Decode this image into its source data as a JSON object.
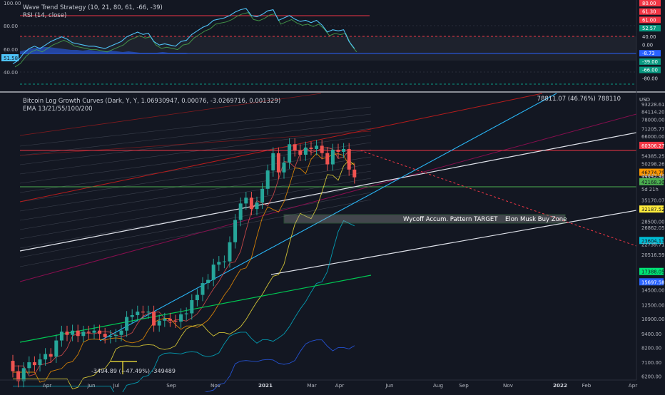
{
  "upper_panel": {
    "legend": [
      "Wave Trend Strategy (10, 21, 80, 61, -66, -39)",
      "RSI (14, close)"
    ],
    "left_axis": [
      "100.00",
      "80.00",
      "60.00",
      "40.00"
    ],
    "rsi_badge": "51.58",
    "right_tags": [
      {
        "text": "80.00",
        "color": "#f23645"
      },
      {
        "text": "61.30",
        "color": "#f23645"
      },
      {
        "text": "61.00",
        "color": "#f23645"
      },
      {
        "text": "52.57",
        "color": "#089981"
      },
      {
        "text": "40.00",
        "color": "#131722"
      },
      {
        "text": "0.00",
        "color": "#131722"
      },
      {
        "text": "-8.73",
        "color": "#2962ff"
      },
      {
        "text": "-39.00",
        "color": "#089981"
      },
      {
        "text": "-66.00",
        "color": "#089981"
      },
      {
        "text": "-80.00",
        "color": "#131722"
      }
    ]
  },
  "main_panel": {
    "legend": [
      "Bitcoin Log Growth Curves (Dark, Y, Y, 1.06930947, 0.00076, -3.0269716, 0.001329)",
      "EMA 13/21/55/100/200"
    ],
    "ohlc_readout": "78811.07 (46.76%) 788110",
    "currency": "USD",
    "zone_labels": [
      "Wycoff Accum. Pattern TARGET",
      "Elon Musk Buy Zone"
    ],
    "measure_label": "-3494.89 (−47.49%) -349489",
    "countdown": "5d 21h",
    "price_axis": [
      {
        "text": "93228.61",
        "price": 93228.61,
        "tag": "plain"
      },
      {
        "text": "84114.20",
        "price": 84114.2,
        "tag": "plain"
      },
      {
        "text": "78000.00",
        "price": 78000.0,
        "tag": "plain"
      },
      {
        "text": "71205.77",
        "price": 71205.77,
        "tag": "plain"
      },
      {
        "text": "66000.00",
        "price": 66000.0,
        "tag": "plain"
      },
      {
        "text": "60306.27",
        "price": 60306.27,
        "tag": "#f23645"
      },
      {
        "text": "54385.25",
        "price": 54385.25,
        "tag": "plain"
      },
      {
        "text": "50298.26",
        "price": 50298.26,
        "tag": "plain"
      },
      {
        "text": "46274.79",
        "price": 46274.79,
        "tag": "#ff9800"
      },
      {
        "text": "44843.48",
        "price": 44843.48,
        "tag": "plain"
      },
      {
        "text": "43734.80",
        "price": 43734.8,
        "tag": "plain"
      },
      {
        "text": "42168.30",
        "price": 42168.3,
        "tag": "#4caf50"
      },
      {
        "text": "35170.07",
        "price": 35170.07,
        "tag": "plain"
      },
      {
        "text": "32187.52",
        "price": 32187.52,
        "tag": "#ffeb3b"
      },
      {
        "text": "28500.00",
        "price": 28500.0,
        "tag": "plain"
      },
      {
        "text": "26862.05",
        "price": 26862.05,
        "tag": "plain"
      },
      {
        "text": "23604.13",
        "price": 23604.13,
        "tag": "#00bcd4"
      },
      {
        "text": "22739.71",
        "price": 22739.71,
        "tag": "plain"
      },
      {
        "text": "20516.59",
        "price": 20516.59,
        "tag": "plain"
      },
      {
        "text": "17388.05",
        "price": 17388.05,
        "tag": "#00e676"
      },
      {
        "text": "15697.58",
        "price": 15697.58,
        "tag": "#2962ff"
      },
      {
        "text": "14500.00",
        "price": 14500.0,
        "tag": "plain"
      },
      {
        "text": "12500.00",
        "price": 12500.0,
        "tag": "plain"
      },
      {
        "text": "10900.00",
        "price": 10900.0,
        "tag": "plain"
      },
      {
        "text": "9400.00",
        "price": 9400.0,
        "tag": "plain"
      },
      {
        "text": "8200.00",
        "price": 8200.0,
        "tag": "plain"
      },
      {
        "text": "7100.00",
        "price": 7100.0,
        "tag": "plain"
      },
      {
        "text": "6200.00",
        "price": 6200.0,
        "tag": "plain"
      }
    ],
    "time_axis": [
      "Apr",
      "Jun",
      "Jul",
      "Sep",
      "Nov",
      "2021",
      "Mar",
      "Apr",
      "Jun",
      "Aug",
      "Sep",
      "Nov",
      "2022",
      "Feb",
      "Apr"
    ]
  },
  "chart_data": {
    "type": "candlestick",
    "title": "Bitcoin Log Growth Curves (Dark, Y, Y, 1.06930947, 0.00076, -3.0269716, 0.001329)",
    "xlabel": "",
    "ylabel": "USD",
    "log_scale": true,
    "ylim": [
      6000,
      100000
    ],
    "x_start": "2020-03",
    "x_end": "2022-04",
    "colors": {
      "up": "#26a69a",
      "down": "#ef5350",
      "background": "#131722"
    },
    "candles_weekly": [
      [
        7200,
        6500
      ],
      [
        6500,
        5900
      ],
      [
        5900,
        6700
      ],
      [
        6700,
        7100
      ],
      [
        7100,
        6900
      ],
      [
        6900,
        7300
      ],
      [
        7300,
        7700
      ],
      [
        7700,
        7500
      ],
      [
        7500,
        8800
      ],
      [
        8800,
        9600
      ],
      [
        9600,
        9300
      ],
      [
        9300,
        9700
      ],
      [
        9700,
        9200
      ],
      [
        9200,
        9600
      ],
      [
        9600,
        9500
      ],
      [
        9500,
        9700
      ],
      [
        9700,
        9400
      ],
      [
        9400,
        9100
      ],
      [
        9100,
        9200
      ],
      [
        9200,
        9300
      ],
      [
        9300,
        9700
      ],
      [
        9700,
        11100
      ],
      [
        11100,
        11300
      ],
      [
        11300,
        11700
      ],
      [
        11700,
        11600
      ],
      [
        11600,
        11700
      ],
      [
        11700,
        10200
      ],
      [
        10200,
        10700
      ],
      [
        10700,
        10900
      ],
      [
        10900,
        10700
      ],
      [
        10700,
        10600
      ],
      [
        10600,
        11400
      ],
      [
        11400,
        11500
      ],
      [
        11500,
        13100
      ],
      [
        13100,
        13800
      ],
      [
        13800,
        15500
      ],
      [
        15500,
        16000
      ],
      [
        16000,
        18600
      ],
      [
        18600,
        19100
      ],
      [
        19100,
        19200
      ],
      [
        19200,
        23200
      ],
      [
        23200,
        28900
      ],
      [
        28900,
        34000
      ],
      [
        34000,
        36000
      ],
      [
        36000,
        32200
      ],
      [
        32200,
        34300
      ],
      [
        34300,
        39300
      ],
      [
        39300,
        47100
      ],
      [
        47100,
        55800
      ],
      [
        55800,
        46200
      ],
      [
        46200,
        50900
      ],
      [
        50900,
        61000
      ],
      [
        61000,
        57500
      ],
      [
        57500,
        55000
      ],
      [
        55000,
        59000
      ],
      [
        59000,
        58200
      ],
      [
        58200,
        60100
      ],
      [
        60100,
        55900
      ],
      [
        55900,
        50000
      ],
      [
        50000,
        57800
      ],
      [
        57800,
        56600
      ],
      [
        56600,
        58200
      ],
      [
        58200,
        47500
      ],
      [
        47500,
        44000
      ]
    ],
    "rsi_14": [
      47,
      50,
      56,
      60,
      62,
      60,
      63,
      66,
      68,
      70,
      68,
      65,
      64,
      63,
      62,
      62,
      61,
      60,
      62,
      64,
      66,
      70,
      72,
      74,
      72,
      73,
      66,
      63,
      64,
      63,
      62,
      66,
      67,
      72,
      75,
      78,
      80,
      84,
      85,
      86,
      88,
      91,
      93,
      94,
      88,
      87,
      89,
      92,
      93,
      84,
      86,
      88,
      85,
      83,
      84,
      82,
      84,
      80,
      74,
      76,
      75,
      76,
      66,
      60
    ],
    "ema_periods": [
      13,
      21,
      55,
      100,
      200
    ],
    "horizontal_levels": [
      60306.27,
      42168.3
    ],
    "zone": {
      "labels": [
        "Wycoff Accum. Pattern TARGET",
        "Elon Musk Buy Zone"
      ],
      "price_range": [
        28500,
        33000
      ]
    }
  }
}
